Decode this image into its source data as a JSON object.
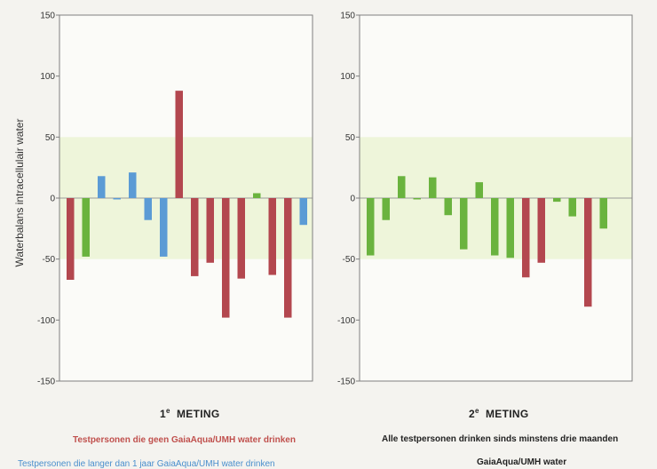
{
  "figure": {
    "ylabel": "Waterbalans intracellulair water",
    "colors": {
      "red": "#b3474f",
      "green": "#6ab33e",
      "blue": "#5b9bd5",
      "band": "#eef5da",
      "plot_bg": "#fbfbf8",
      "axis": "#7f7f7f"
    }
  },
  "panels": [
    {
      "title_prefix": "1",
      "title_sup": "e",
      "title_word": "METING",
      "notes": {
        "red": "Testpersonen die geen GaiaAqua/UMH water drinken",
        "blue": "Testpersonen die langer dan 1 jaar GaiaAqua/UMH water drinken"
      }
    },
    {
      "title_prefix": "2",
      "title_sup": "e",
      "title_word": "METING",
      "notes": {
        "line1": "Alle testpersonen drinken sinds minstens drie maanden",
        "line2": "GaiaAqua/UMH water"
      }
    }
  ],
  "chart_data": [
    {
      "type": "bar",
      "title": "1e METING",
      "ylabel": "Waterbalans intracellulair water",
      "ylim": [
        -150,
        150
      ],
      "yticks": [
        150,
        100,
        50,
        0,
        -50,
        -100,
        -150
      ],
      "grid": false,
      "values": [
        -67,
        -48,
        18,
        -1,
        21,
        -18,
        -48,
        88,
        -64,
        -53,
        -98,
        -66,
        4,
        -63,
        -98,
        -22
      ],
      "bar_colors": [
        "red",
        "green",
        "blue",
        "blue",
        "blue",
        "blue",
        "blue",
        "red",
        "red",
        "red",
        "red",
        "red",
        "green",
        "red",
        "red",
        "blue"
      ]
    },
    {
      "type": "bar",
      "title": "2e METING",
      "ylim": [
        -150,
        150
      ],
      "yticks": [
        150,
        100,
        50,
        0,
        -50,
        -100,
        -150
      ],
      "grid": false,
      "values": [
        -47,
        -18,
        18,
        0,
        17,
        -14,
        -42,
        13,
        -47,
        -49,
        -65,
        -53,
        -3,
        -15,
        -89,
        -25
      ],
      "bar_colors": [
        "green",
        "green",
        "green",
        "green",
        "green",
        "green",
        "green",
        "green",
        "green",
        "green",
        "red",
        "red",
        "green",
        "green",
        "red",
        "green"
      ]
    }
  ]
}
